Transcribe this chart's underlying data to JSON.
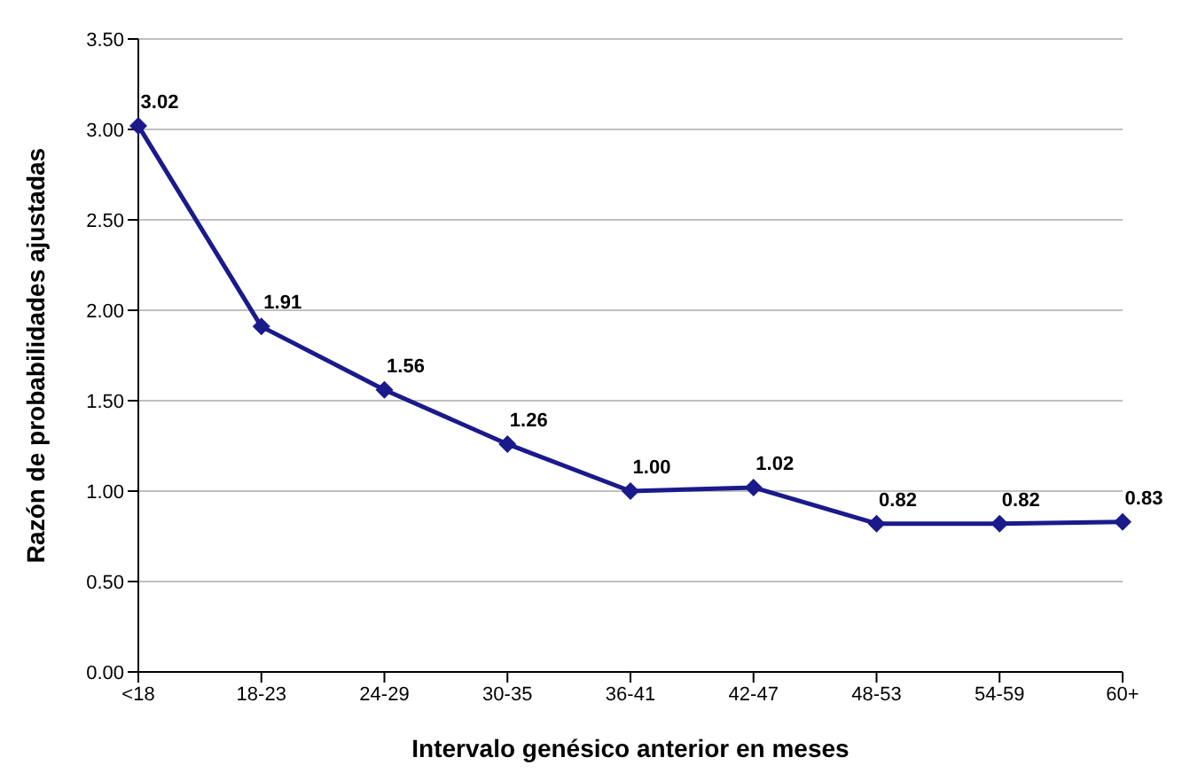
{
  "chart_data": {
    "type": "line",
    "xlabel": "Intervalo genésico anterior en meses",
    "ylabel": "Razón de probabilidades ajustadas",
    "categories": [
      "<18",
      "18-23",
      "24-29",
      "30-35",
      "36-41",
      "42-47",
      "48-53",
      "54-59",
      "60+"
    ],
    "series": [
      {
        "color": "#1a1a8c",
        "values": [
          3.02,
          1.91,
          1.56,
          1.26,
          1.0,
          1.02,
          0.82,
          0.82,
          0.83
        ],
        "value_labels": [
          "3.02",
          "1.91",
          "1.56",
          "1.26",
          "1.00",
          "1.02",
          "0.82",
          "0.82",
          "0.83"
        ]
      }
    ],
    "ylim": [
      0,
      3.5
    ],
    "yticks": [
      {
        "value": 0,
        "label": "0.00"
      },
      {
        "value": 0.5,
        "label": "0.50"
      },
      {
        "value": 1,
        "label": "1.00"
      },
      {
        "value": 1.5,
        "label": "1.50"
      },
      {
        "value": 2,
        "label": "2.00"
      },
      {
        "value": 2.5,
        "label": "2.50"
      },
      {
        "value": 3,
        "label": "3.00"
      },
      {
        "value": 3.5,
        "label": "3.50"
      }
    ],
    "grid": "y",
    "marker": "diamond",
    "line_style": "solid",
    "legend": false
  }
}
